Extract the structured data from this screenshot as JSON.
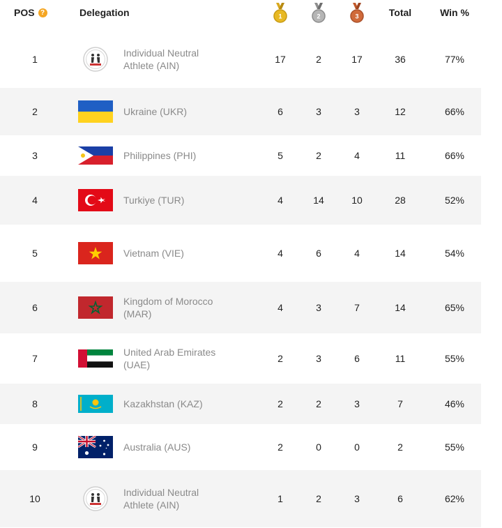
{
  "header": {
    "pos_label": "POS",
    "info_icon": "?",
    "delegation_label": "Delegation",
    "gold_label": "1",
    "silver_label": "2",
    "bronze_label": "3",
    "total_label": "Total",
    "win_label": "Win %"
  },
  "colors": {
    "gold": "#e8b923",
    "silver": "#a9a9a9",
    "bronze": "#d06a3a",
    "info": "#f5a623",
    "alt_row": "#f4f4f4",
    "name_text": "#8a8a8a"
  },
  "rows": [
    {
      "pos": "1",
      "flag": "ain-logo",
      "name_line1": "Individual Neutral",
      "name_line2": "Athlete (AIN)",
      "gold": "17",
      "silver": "2",
      "bronze": "17",
      "total": "36",
      "win": "77%"
    },
    {
      "pos": "2",
      "flag": "ukraine-flag",
      "name_line1": "Ukraine (UKR)",
      "name_line2": "",
      "gold": "6",
      "silver": "3",
      "bronze": "3",
      "total": "12",
      "win": "66%"
    },
    {
      "pos": "3",
      "flag": "philippines-flag",
      "name_line1": "Philippines (PHI)",
      "name_line2": "",
      "gold": "5",
      "silver": "2",
      "bronze": "4",
      "total": "11",
      "win": "66%"
    },
    {
      "pos": "4",
      "flag": "turkiye-flag",
      "name_line1": "Turkiye (TUR)",
      "name_line2": "",
      "gold": "4",
      "silver": "14",
      "bronze": "10",
      "total": "28",
      "win": "52%"
    },
    {
      "pos": "5",
      "flag": "vietnam-flag",
      "name_line1": "Vietnam (VIE)",
      "name_line2": "",
      "gold": "4",
      "silver": "6",
      "bronze": "4",
      "total": "14",
      "win": "54%"
    },
    {
      "pos": "6",
      "flag": "morocco-flag",
      "name_line1": "Kingdom of Morocco",
      "name_line2": "(MAR)",
      "gold": "4",
      "silver": "3",
      "bronze": "7",
      "total": "14",
      "win": "65%"
    },
    {
      "pos": "7",
      "flag": "uae-flag",
      "name_line1": "United Arab Emirates",
      "name_line2": "(UAE)",
      "gold": "2",
      "silver": "3",
      "bronze": "6",
      "total": "11",
      "win": "55%"
    },
    {
      "pos": "8",
      "flag": "kazakhstan-flag",
      "name_line1": "Kazakhstan (KAZ)",
      "name_line2": "",
      "gold": "2",
      "silver": "2",
      "bronze": "3",
      "total": "7",
      "win": "46%"
    },
    {
      "pos": "9",
      "flag": "australia-flag",
      "name_line1": "Australia (AUS)",
      "name_line2": "",
      "gold": "2",
      "silver": "0",
      "bronze": "0",
      "total": "2",
      "win": "55%"
    },
    {
      "pos": "10",
      "flag": "ain-logo",
      "name_line1": "Individual Neutral",
      "name_line2": "Athlete (AIN)",
      "gold": "1",
      "silver": "2",
      "bronze": "3",
      "total": "6",
      "win": "62%"
    }
  ]
}
